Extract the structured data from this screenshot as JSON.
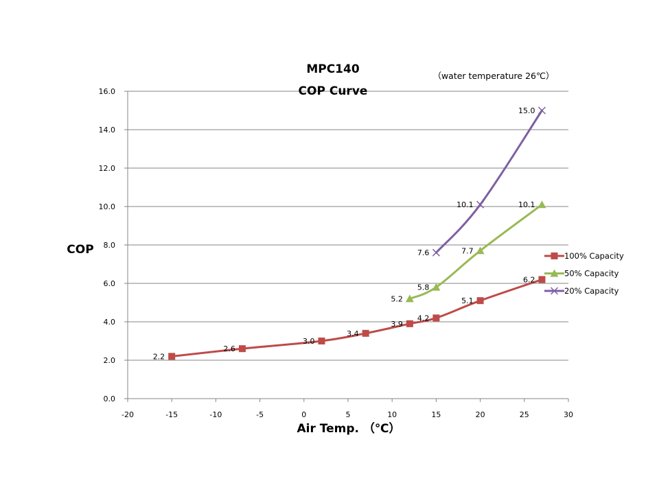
{
  "chart_data": {
    "type": "line",
    "title": "MPC140",
    "subtitle": "COP Curve",
    "annotation": "（water  temperature 26℃）",
    "xlabel": "Air Temp.  （℃）",
    "ylabel": "COP",
    "xlim": [
      -20,
      30
    ],
    "ylim": [
      0,
      16
    ],
    "x_ticks": [
      -20,
      -15,
      -10,
      -5,
      0,
      5,
      10,
      15,
      20,
      25,
      30
    ],
    "y_ticks": [
      "0.0",
      "2.0",
      "4.0",
      "6.0",
      "8.0",
      "10.0",
      "12.0",
      "14.0",
      "16.0"
    ],
    "grid": "horizontal",
    "legend_position": "right",
    "series": [
      {
        "name": "100% Capacity",
        "color": "#be4b48",
        "marker": "square",
        "points": [
          {
            "x": -15,
            "y": 2.2,
            "label": "2.2"
          },
          {
            "x": -7,
            "y": 2.6,
            "label": "2.6"
          },
          {
            "x": 2,
            "y": 3.0,
            "label": "3.0"
          },
          {
            "x": 7,
            "y": 3.4,
            "label": "3.4"
          },
          {
            "x": 12,
            "y": 3.9,
            "label": "3.9"
          },
          {
            "x": 15,
            "y": 4.2,
            "label": "4.2"
          },
          {
            "x": 20,
            "y": 5.1,
            "label": "5.1"
          },
          {
            "x": 27,
            "y": 6.2,
            "label": "6.2"
          }
        ]
      },
      {
        "name": "50% Capacity",
        "color": "#98b954",
        "marker": "triangle",
        "points": [
          {
            "x": 12,
            "y": 5.2,
            "label": "5.2"
          },
          {
            "x": 15,
            "y": 5.8,
            "label": "5.8"
          },
          {
            "x": 20,
            "y": 7.7,
            "label": "7.7"
          },
          {
            "x": 27,
            "y": 10.1,
            "label": "10.1"
          }
        ]
      },
      {
        "name": "20% Capacity",
        "color": "#7d60a0",
        "marker": "x",
        "points": [
          {
            "x": 15,
            "y": 7.6,
            "label": "7.6"
          },
          {
            "x": 20,
            "y": 10.1,
            "label": "10.1"
          },
          {
            "x": 27,
            "y": 15.0,
            "label": "15.0"
          }
        ]
      }
    ]
  }
}
